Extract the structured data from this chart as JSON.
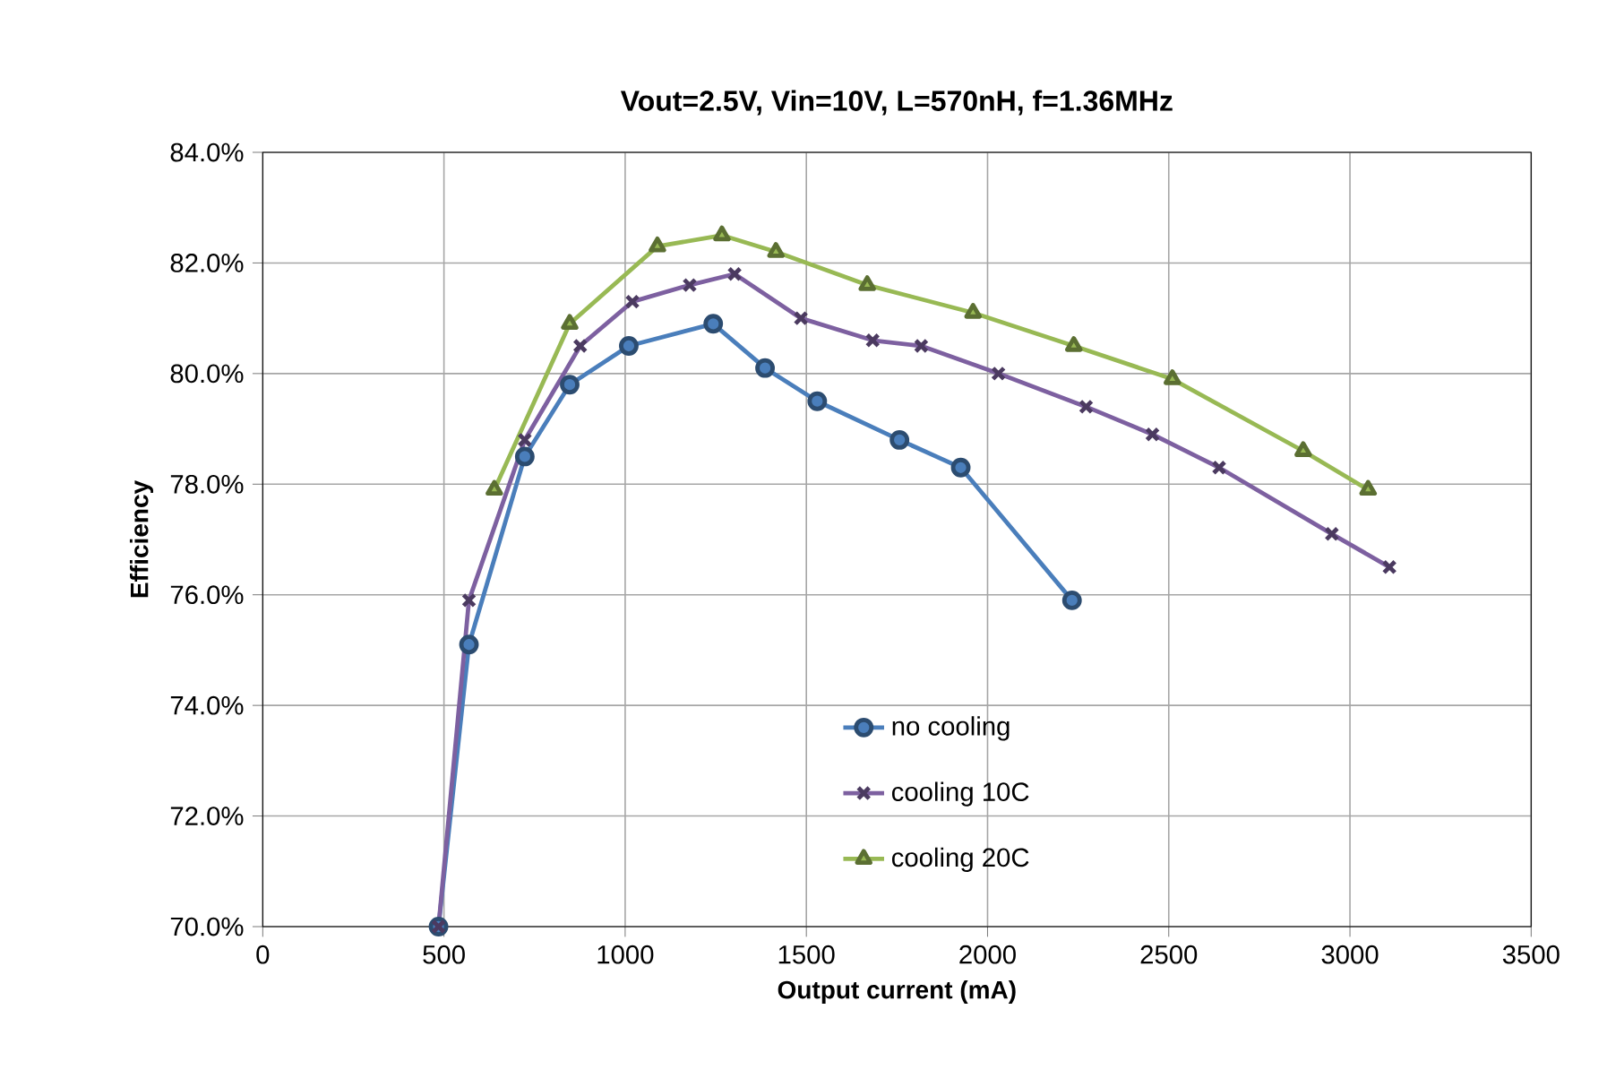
{
  "chart_data": {
    "type": "line",
    "title": "Vout=2.5V, Vin=10V, L=570nH, f=1.36MHz",
    "xlabel": "Output current (mA)",
    "ylabel": "Efficiency",
    "xlim": [
      0,
      3500
    ],
    "xticks": [
      0,
      500,
      1000,
      1500,
      2000,
      2500,
      3000,
      3500
    ],
    "ylim": [
      70,
      84
    ],
    "yticks": [
      {
        "value": 70,
        "label": "70.0%"
      },
      {
        "value": 72,
        "label": "72.0%"
      },
      {
        "value": 74,
        "label": "74.0%"
      },
      {
        "value": 76,
        "label": "76.0%"
      },
      {
        "value": 78,
        "label": "78.0%"
      },
      {
        "value": 80,
        "label": "80.0%"
      },
      {
        "value": 82,
        "label": "82.0%"
      },
      {
        "value": 84,
        "label": "84.0%"
      }
    ],
    "grid": true,
    "legend": "bottom right",
    "series": [
      {
        "name": "no cooling",
        "color": "#4a7ebb",
        "marker": "circle",
        "x": [
          485,
          569,
          723,
          847,
          1010,
          1243,
          1386,
          1530,
          1757,
          1926,
          2233
        ],
        "values": [
          70.0,
          75.1,
          78.5,
          79.8,
          80.5,
          80.9,
          80.1,
          79.5,
          78.8,
          78.3,
          75.9
        ]
      },
      {
        "name": "cooling 10C",
        "color": "#7d60a0",
        "marker": "cross",
        "x": [
          485,
          569,
          723,
          876,
          1020,
          1178,
          1302,
          1485,
          1683,
          1817,
          2030,
          2272,
          2455,
          2639,
          2950,
          3109
        ],
        "values": [
          70.0,
          75.9,
          78.8,
          80.5,
          81.3,
          81.6,
          81.8,
          81.0,
          80.6,
          80.5,
          80.0,
          79.4,
          78.9,
          78.3,
          77.1,
          76.5
        ]
      },
      {
        "name": "cooling 20C",
        "color": "#98b954",
        "marker": "triangle",
        "x": [
          639,
          847,
          1089,
          1267,
          1416,
          1668,
          1960,
          2238,
          2510,
          2871,
          3050
        ],
        "values": [
          77.9,
          80.9,
          82.3,
          82.5,
          82.2,
          81.6,
          81.1,
          80.5,
          79.9,
          78.6,
          77.9
        ]
      }
    ]
  }
}
